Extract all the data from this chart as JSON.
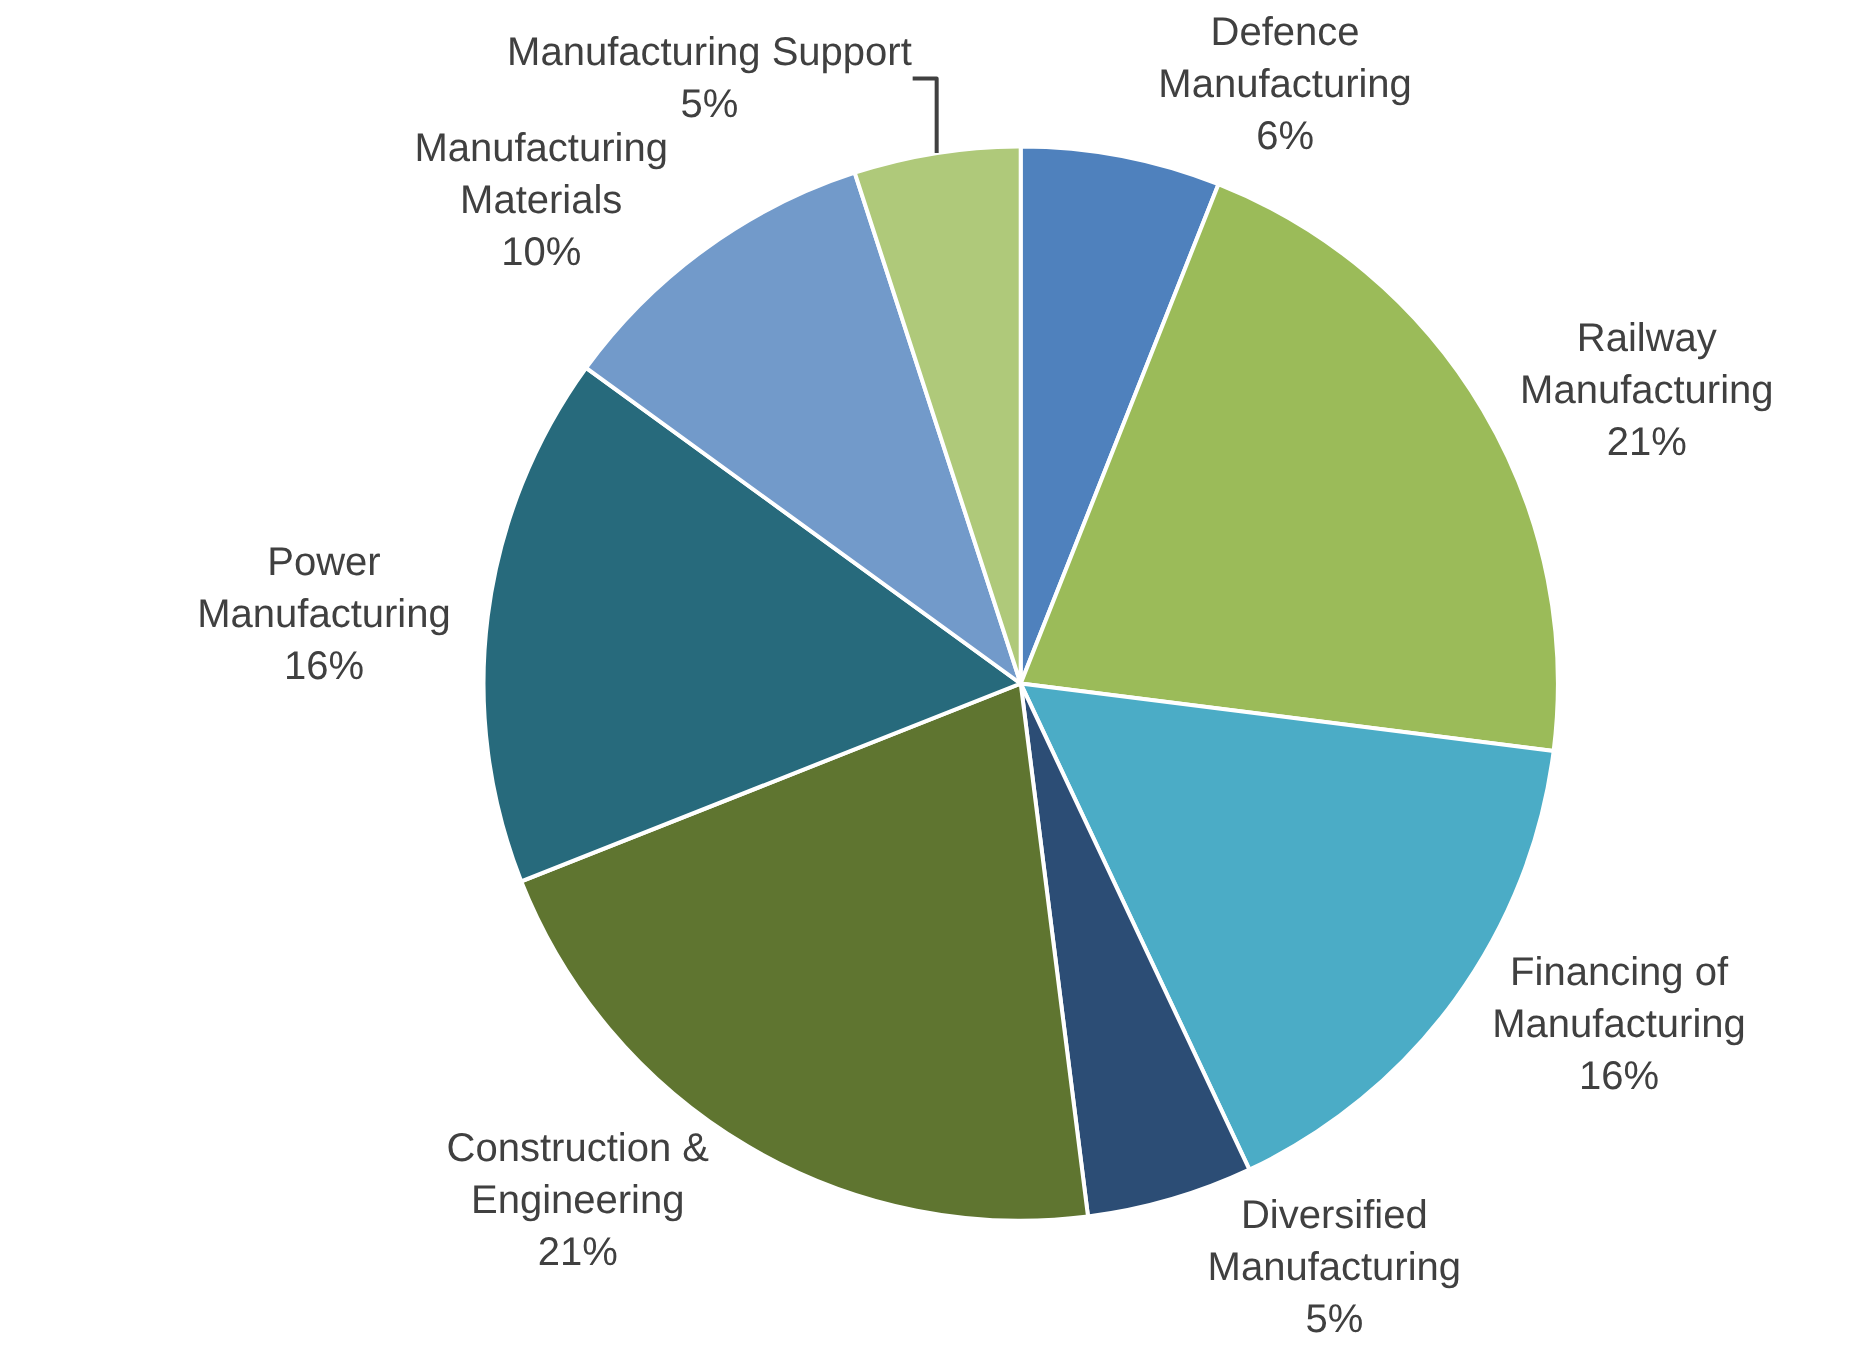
{
  "chart_data": {
    "type": "pie",
    "categories": [
      "Defence\nManufacturing",
      "Railway\nManufacturing",
      "Financing of\nManufacturing",
      "Diversified\nManufacturing",
      "Construction &\nEngineering",
      "Power\nManufacturing",
      "Manufacturing\nMaterials",
      "Manufacturing Support"
    ],
    "values": [
      6,
      21,
      16,
      5,
      21,
      16,
      10,
      5
    ],
    "value_labels": [
      "6%",
      "21%",
      "16%",
      "5%",
      "21%",
      "16%",
      "10%",
      "5%"
    ],
    "colors": [
      "#4f81bd",
      "#9bbb59",
      "#4bacc6",
      "#2c4d75",
      "#5f7530",
      "#276a7c",
      "#729aca",
      "#afc97a"
    ],
    "legend": false
  }
}
